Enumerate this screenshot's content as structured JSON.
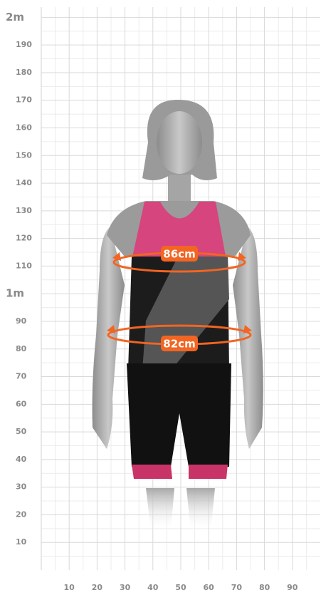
{
  "chart_data": {
    "type": "grid",
    "ylim": [
      0,
      205
    ],
    "xlim": [
      0,
      100
    ],
    "yticks": [
      10,
      20,
      30,
      40,
      50,
      60,
      70,
      80,
      90,
      {
        "value": 100,
        "label": "1m"
      },
      110,
      120,
      130,
      140,
      150,
      160,
      170,
      180,
      190,
      {
        "value": 200,
        "label": "2m"
      }
    ],
    "xticks": [
      10,
      20,
      30,
      40,
      50,
      60,
      70,
      80,
      90
    ],
    "grid": true,
    "annotations": [
      "86cm",
      "82cm"
    ],
    "color": "#f26522"
  }
}
